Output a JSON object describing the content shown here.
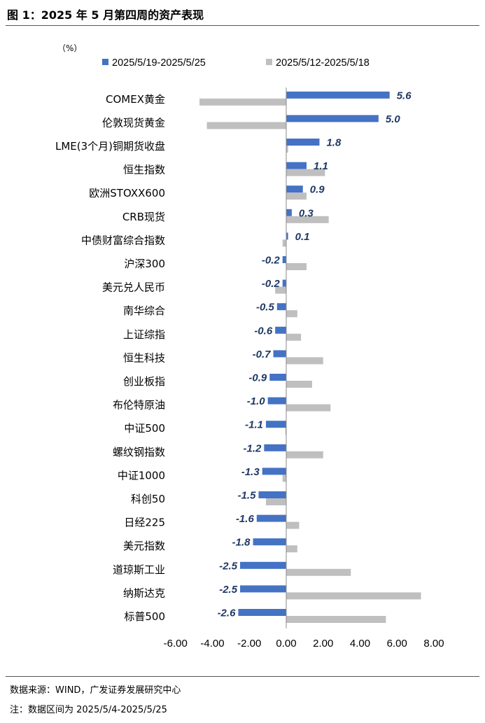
{
  "header": {
    "title": "图 1：2025 年 5 月第四周的资产表现"
  },
  "footer": {
    "source": "数据来源：WIND，广发证券发展研究中心",
    "note": "注：数据区间为 2025/5/4-2025/5/25"
  },
  "chart_data": {
    "type": "bar",
    "orientation": "horizontal",
    "unit_label": "（%）",
    "categories": [
      "COMEX黄金",
      "伦敦现货黄金",
      "LME(3个月)铜期货收盘",
      "恒生指数",
      "欧洲STOXX600",
      "CRB现货",
      "中债财富综合指数",
      "沪深300",
      "美元兑人民币",
      "南华综合",
      "上证综指",
      "恒生科技",
      "创业板指",
      "布伦特原油",
      "中证500",
      "螺纹钢指数",
      "中证1000",
      "科创50",
      "日经225",
      "美元指数",
      "道琼斯工业",
      "纳斯达克",
      "标普500"
    ],
    "series": [
      {
        "name": "2025/5/19-2025/5/25",
        "color": "#4472C4",
        "values": [
          5.6,
          5.0,
          1.8,
          1.1,
          0.9,
          0.3,
          0.1,
          -0.2,
          -0.2,
          -0.5,
          -0.6,
          -0.7,
          -0.9,
          -1.0,
          -1.1,
          -1.2,
          -1.3,
          -1.5,
          -1.6,
          -1.8,
          -2.5,
          -2.5,
          -2.6
        ],
        "labels": [
          "5.6",
          "5.0",
          "1.8",
          "1.1",
          "0.9",
          "0.3",
          "0.1",
          "-0.2",
          "-0.2",
          "-0.5",
          "-0.6",
          "-0.7",
          "-0.9",
          "-1.0",
          "-1.1",
          "-1.2",
          "-1.3",
          "-1.5",
          "-1.6",
          "-1.8",
          "-2.5",
          "-2.5",
          "-2.6"
        ]
      },
      {
        "name": "2025/5/12-2025/5/18",
        "color": "#BFBFBF",
        "values": [
          -4.7,
          -4.3,
          0.1,
          2.1,
          1.1,
          2.3,
          -0.2,
          1.1,
          -0.6,
          0.6,
          0.8,
          2.0,
          1.4,
          2.4,
          -0.05,
          2.0,
          -0.2,
          -1.1,
          0.7,
          0.6,
          3.5,
          7.3,
          5.4
        ]
      }
    ],
    "xticks": [
      "-6.00",
      "-4.00",
      "-2.00",
      "0.00",
      "2.00",
      "4.00",
      "6.00",
      "8.00"
    ],
    "xlim": [
      -6,
      8
    ],
    "legend_position": "top",
    "grid": false
  }
}
